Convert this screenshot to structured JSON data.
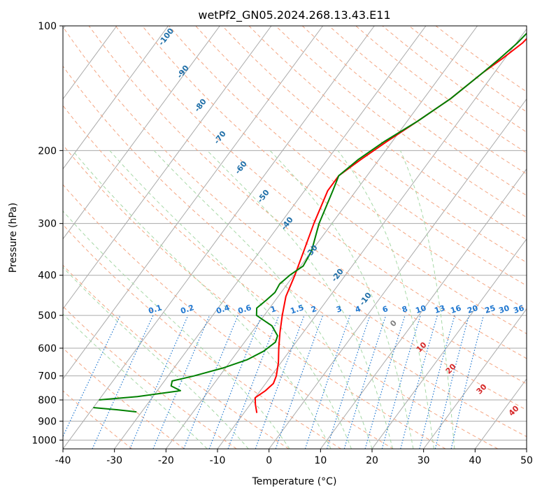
{
  "chart_data": {
    "type": "line",
    "title": "wetPf2_GN05.2024.268.13.43.E11",
    "xlabel": "Temperature (°C)",
    "ylabel": "Pressure (hPa)",
    "xlim": [
      -40,
      50
    ],
    "ylim": [
      1050,
      100
    ],
    "y_scale": "log",
    "grid": true,
    "x_ticks": [
      "-40",
      "-30",
      "-20",
      "-10",
      "0",
      "10",
      "20",
      "30",
      "40",
      "50"
    ],
    "y_ticks": [
      "100",
      "200",
      "300",
      "400",
      "500",
      "600",
      "700",
      "800",
      "900",
      "1000"
    ],
    "series": [
      {
        "color": "#ff0000",
        "points": [
          [
            -8.0,
            100
          ],
          [
            -8.8,
            110
          ],
          [
            -10.5,
            120
          ],
          [
            -12.3,
            130
          ],
          [
            -14.8,
            150
          ],
          [
            -18.0,
            170
          ],
          [
            -21.0,
            190
          ],
          [
            -23.5,
            210
          ],
          [
            -25.5,
            230
          ],
          [
            -25.5,
            250
          ],
          [
            -23.5,
            300
          ],
          [
            -21.5,
            350
          ],
          [
            -19.8,
            400
          ],
          [
            -18.5,
            450
          ],
          [
            -16.5,
            500
          ],
          [
            -14.5,
            550
          ],
          [
            -12.5,
            600
          ],
          [
            -10.5,
            650
          ],
          [
            -9.0,
            700
          ],
          [
            -8.5,
            730
          ],
          [
            -9.0,
            760
          ],
          [
            -10.0,
            790
          ],
          [
            -9.0,
            820
          ],
          [
            -7.5,
            860
          ]
        ]
      },
      {
        "color": "#008000",
        "points": [
          [
            -9.0,
            100
          ],
          [
            -9.8,
            110
          ],
          [
            -11.0,
            120
          ],
          [
            -12.3,
            130
          ],
          [
            -14.8,
            150
          ],
          [
            -18.0,
            170
          ],
          [
            -21.5,
            190
          ],
          [
            -24.0,
            210
          ],
          [
            -25.5,
            230
          ],
          [
            -24.5,
            250
          ],
          [
            -22.5,
            300
          ],
          [
            -20.0,
            350
          ],
          [
            -19.5,
            380
          ],
          [
            -20.8,
            400
          ],
          [
            -21.5,
            420
          ],
          [
            -21.2,
            440
          ],
          [
            -21.8,
            460
          ],
          [
            -22.5,
            480
          ],
          [
            -21.5,
            500
          ],
          [
            -17.0,
            530
          ],
          [
            -14.5,
            560
          ],
          [
            -14.0,
            580
          ],
          [
            -15.0,
            610
          ],
          [
            -17.0,
            640
          ],
          [
            -20.5,
            670
          ],
          [
            -25.0,
            700
          ],
          [
            -28.5,
            720
          ],
          [
            -28.0,
            740
          ],
          [
            -25.5,
            760
          ],
          [
            -33.0,
            785
          ],
          [
            -40.0,
            800
          ]
        ]
      },
      {
        "color": "#008000",
        "points": [
          [
            -40.0,
            835
          ],
          [
            -35.0,
            845
          ],
          [
            -31.0,
            855
          ]
        ]
      }
    ],
    "mixing_ratio_labels": [
      "0.1",
      "0.2",
      "0.4",
      "0.6",
      "1",
      "1.5",
      "2",
      "3",
      "4",
      "6",
      "8",
      "10",
      "13",
      "16",
      "20",
      "25",
      "30",
      "36"
    ],
    "dry_adiabat_labels": [
      "-100",
      "-90",
      "-80",
      "-70",
      "-60",
      "-50",
      "-40",
      "-30",
      "-20",
      "-10"
    ],
    "moist_adiabat_labels": [
      "0",
      "10",
      "20",
      "30",
      "40"
    ],
    "colors": {
      "temperature": "#ff0000",
      "dewpoint": "#008000",
      "isotherm": "#aaaaaa",
      "dry_adiabat": "#f4a582",
      "moist_adiabat": "#a6d8a6",
      "mixing_ratio": "#1f77d0",
      "dry_adiabat_label": "#1f6fa8",
      "moist_adiabat_label": "#d62728",
      "zero_label": "#7f7f7f"
    }
  }
}
